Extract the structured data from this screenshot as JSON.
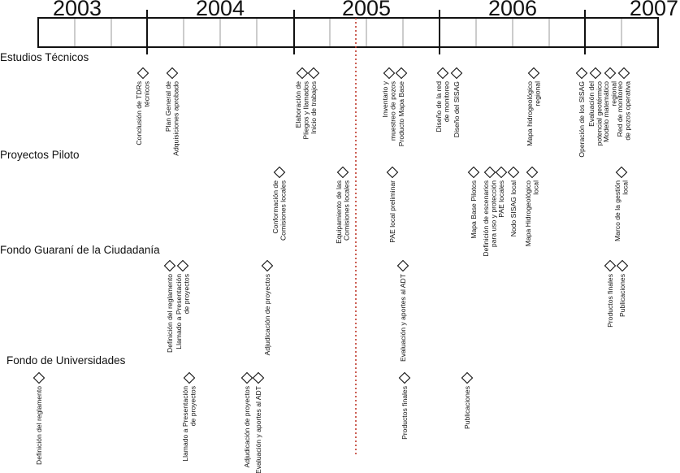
{
  "timeline": {
    "years": [
      "2003",
      "2004",
      "2005",
      "2006",
      "2007"
    ]
  },
  "sections": [
    {
      "title": "Estudios Técnicos",
      "milestones": [
        {
          "lines": [
            "Conclusión de TDRs",
            "técnicos"
          ]
        },
        {
          "lines": [
            "Plan General de",
            "Adquisiciones aprobado"
          ]
        },
        {
          "lines": [
            "Elaboración de",
            "Pliegos y llamados"
          ]
        },
        {
          "lines": [
            "Inicio de trabajos"
          ]
        },
        {
          "lines": [
            "Inventario y",
            "muestreo de pozos"
          ]
        },
        {
          "lines": [
            "Producto Mapa Base"
          ]
        },
        {
          "lines": [
            "Diseño de la red",
            "de monitoreo"
          ]
        },
        {
          "lines": [
            "Diseño del SISAG"
          ]
        },
        {
          "lines": [
            "Mapa hidrogeológico",
            "regional"
          ]
        },
        {
          "lines": [
            "Operación de los SISAG"
          ]
        },
        {
          "lines": [
            "Evaluación del",
            "potencial geotérmico"
          ]
        },
        {
          "lines": [
            "Modelo matemático",
            "regional"
          ]
        },
        {
          "lines": [
            "Red de monitoreo",
            "de pozos operativa"
          ]
        }
      ]
    },
    {
      "title": "Proyectos Piloto",
      "milestones": [
        {
          "lines": [
            "Conformación de",
            "Comisiones locales"
          ]
        },
        {
          "lines": [
            "Equipamiento de las",
            "Comisiones locales"
          ]
        },
        {
          "lines": [
            "PAE local preliminar"
          ]
        },
        {
          "lines": [
            "Mapa Base Pilotos"
          ]
        },
        {
          "lines": [
            "Definición de escenarios",
            "para uso y protección"
          ]
        },
        {
          "lines": [
            "PAE locales"
          ]
        },
        {
          "lines": [
            "Nodo SISAG local"
          ]
        },
        {
          "lines": [
            "Mapa Hidrogeológico",
            "local"
          ]
        },
        {
          "lines": [
            "Marco de la gestión",
            "local"
          ]
        }
      ]
    },
    {
      "title": "Fondo Guaraní de la Ciudadanía",
      "milestones": [
        {
          "lines": [
            "Definición del reglamento"
          ]
        },
        {
          "lines": [
            "Llamado a Presentación",
            "de proyectos"
          ]
        },
        {
          "lines": [
            "Adjudicación de proyectos"
          ]
        },
        {
          "lines": [
            "Evaluación y aportes al ADT"
          ]
        },
        {
          "lines": [
            "Productos finales"
          ]
        },
        {
          "lines": [
            "Publicaciones"
          ]
        }
      ]
    },
    {
      "title": "Fondo de Universidades",
      "milestones": [
        {
          "lines": [
            "Definición del reglamento"
          ]
        },
        {
          "lines": [
            "Llamado a Presentación",
            "de proyectos"
          ]
        },
        {
          "lines": [
            "Adjudicación de proyectos"
          ]
        },
        {
          "lines": [
            "Evaluación y aportes al ADT"
          ]
        },
        {
          "lines": [
            "Productos finales"
          ]
        },
        {
          "lines": [
            "Publicaciones"
          ]
        }
      ]
    }
  ]
}
